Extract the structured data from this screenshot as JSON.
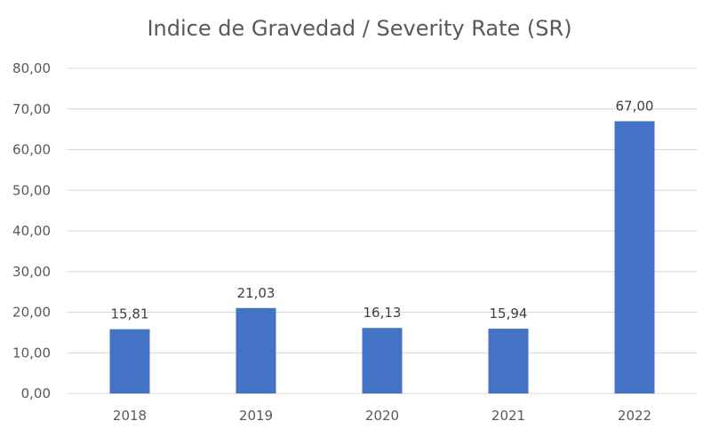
{
  "chart_data": {
    "type": "bar",
    "title": "Indice de Gravedad / Severity Rate (SR)",
    "categories": [
      "2018",
      "2019",
      "2020",
      "2021",
      "2022"
    ],
    "values": [
      15.81,
      21.03,
      16.13,
      15.94,
      67.0
    ],
    "value_labels": [
      "15,81",
      "21,03",
      "16,13",
      "15,94",
      "67,00"
    ],
    "ylim": [
      0,
      80
    ],
    "yticks": [
      0,
      10,
      20,
      30,
      40,
      50,
      60,
      70,
      80
    ],
    "ytick_labels": [
      "0,00",
      "10,00",
      "20,00",
      "30,00",
      "40,00",
      "50,00",
      "60,00",
      "70,00",
      "80,00"
    ],
    "xlabel": "",
    "ylabel": "",
    "grid": true,
    "legend": "none",
    "colors": {
      "bar": "#4472C4",
      "grid": "#D9D9D9",
      "axis_text": "#595959"
    }
  }
}
